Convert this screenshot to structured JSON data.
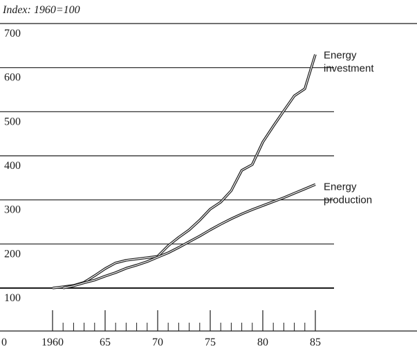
{
  "chart_data": {
    "type": "line",
    "title": "Index: 1960=100",
    "x": [
      1960,
      1961,
      1962,
      1963,
      1964,
      1965,
      1966,
      1967,
      1968,
      1969,
      1970,
      1971,
      1972,
      1973,
      1974,
      1975,
      1976,
      1977,
      1978,
      1979,
      1980,
      1981,
      1982,
      1983,
      1984,
      1985
    ],
    "series": [
      {
        "name": [
          "Energy",
          "investment"
        ],
        "color": "#1a1a1a",
        "values": [
          100,
          103,
          106,
          113,
          128,
          144,
          157,
          163,
          166,
          169,
          172,
          196,
          215,
          232,
          254,
          279,
          295,
          321,
          367,
          380,
          431,
          467,
          502,
          536,
          552,
          630
        ]
      },
      {
        "name": [
          "Energy",
          "production"
        ],
        "color": "#1a1a1a",
        "values": [
          null,
          100,
          105,
          112,
          118,
          127,
          135,
          145,
          152,
          160,
          170,
          180,
          192,
          205,
          218,
          232,
          245,
          257,
          268,
          278,
          287,
          296,
          305,
          315,
          325,
          335
        ]
      }
    ],
    "xlim": [
      1955,
      1987
    ],
    "ylim": [
      100,
      700
    ],
    "yticks": [
      100,
      200,
      300,
      400,
      500,
      600,
      700
    ],
    "xticks": [
      {
        "value": 1960,
        "label": "1960"
      },
      {
        "value": 1965,
        "label": "65"
      },
      {
        "value": 1970,
        "label": "70"
      },
      {
        "value": 1975,
        "label": "75"
      },
      {
        "value": 1980,
        "label": "80"
      },
      {
        "value": 1985,
        "label": "85"
      }
    ],
    "xminorticks": [
      1961,
      1962,
      1963,
      1964,
      1966,
      1967,
      1968,
      1969,
      1971,
      1972,
      1973,
      1974,
      1976,
      1977,
      1978,
      1979,
      1981,
      1982,
      1983,
      1984
    ],
    "axis_break_label": "0",
    "grid": true
  }
}
